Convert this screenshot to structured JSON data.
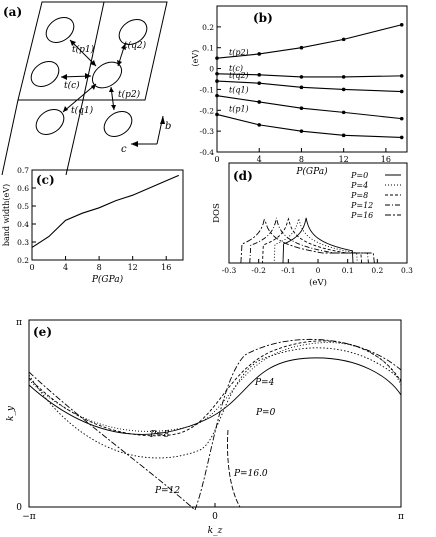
{
  "panel_a": {
    "label": "(a)",
    "labels": [
      "t(p1)",
      "t(q2)",
      "t(c)",
      "t(p2)",
      "t(q1)"
    ],
    "axis_b": "b",
    "axis_c": "c"
  },
  "chart_data": [
    {
      "id": "b",
      "type": "line",
      "label": "(b)",
      "xlabel": "P(GPa)",
      "ylabel": "(eV)",
      "xlim": [
        0,
        18
      ],
      "ylim": [
        -0.4,
        0.3
      ],
      "xticks": [
        "0",
        "4",
        "8",
        "12",
        "16"
      ],
      "yticks": [
        "-0.4",
        "-0.3",
        "-0.2",
        "-0.1",
        "0",
        "0.1",
        "0.2"
      ],
      "series": [
        {
          "name": "t(p2)",
          "x": [
            0,
            4,
            8,
            12,
            17.5
          ],
          "y": [
            0.05,
            0.07,
            0.1,
            0.14,
            0.21
          ]
        },
        {
          "name": "t(c)",
          "x": [
            0,
            4,
            8,
            12,
            17.5
          ],
          "y": [
            -0.025,
            -0.03,
            -0.04,
            -0.04,
            -0.035
          ]
        },
        {
          "name": "t(q2)",
          "x": [
            0,
            4,
            8,
            12,
            17.5
          ],
          "y": [
            -0.06,
            -0.07,
            -0.09,
            -0.1,
            -0.11
          ]
        },
        {
          "name": "t(q1)",
          "x": [
            0,
            4,
            8,
            12,
            17.5
          ],
          "y": [
            -0.13,
            -0.16,
            -0.19,
            -0.21,
            -0.24
          ]
        },
        {
          "name": "t(p1)",
          "x": [
            0,
            4,
            8,
            12,
            17.5
          ],
          "y": [
            -0.22,
            -0.27,
            -0.3,
            -0.32,
            -0.33
          ]
        }
      ]
    },
    {
      "id": "c",
      "type": "line",
      "label": "(c)",
      "xlabel": "P(GPa)",
      "ylabel": "band width(eV)",
      "xlim": [
        0,
        18
      ],
      "ylim": [
        0.2,
        0.7
      ],
      "xticks": [
        "0",
        "4",
        "8",
        "12",
        "16"
      ],
      "yticks": [
        "0.2",
        "0.3",
        "0.4",
        "0.5",
        "0.6",
        "0.7"
      ],
      "x": [
        0,
        2,
        4,
        6,
        8,
        10,
        12,
        14,
        16,
        17.5
      ],
      "y": [
        0.27,
        0.33,
        0.42,
        0.46,
        0.49,
        0.53,
        0.56,
        0.6,
        0.64,
        0.67
      ]
    },
    {
      "id": "d",
      "type": "line",
      "label": "(d)",
      "xlabel": "(eV)",
      "ylabel": "DOS",
      "xlim": [
        -0.3,
        0.3
      ],
      "xticks": [
        "-0.3",
        "-0.2",
        "-0.1",
        "0",
        "0.1",
        "0.2",
        "0.3"
      ],
      "legend": [
        "P=0",
        "P=4",
        "P=8",
        "P=12",
        "P=16"
      ],
      "legend_position": "top-right"
    },
    {
      "id": "e",
      "type": "line",
      "label": "(e)",
      "xlabel": "k_z",
      "ylabel": "k_y",
      "xticks": [
        "−π",
        "0",
        "π"
      ],
      "yticks": [
        "0",
        "π"
      ],
      "curve_labels": [
        "P=0",
        "P=4",
        "P=8",
        "P=12",
        "P=16.0"
      ]
    }
  ]
}
